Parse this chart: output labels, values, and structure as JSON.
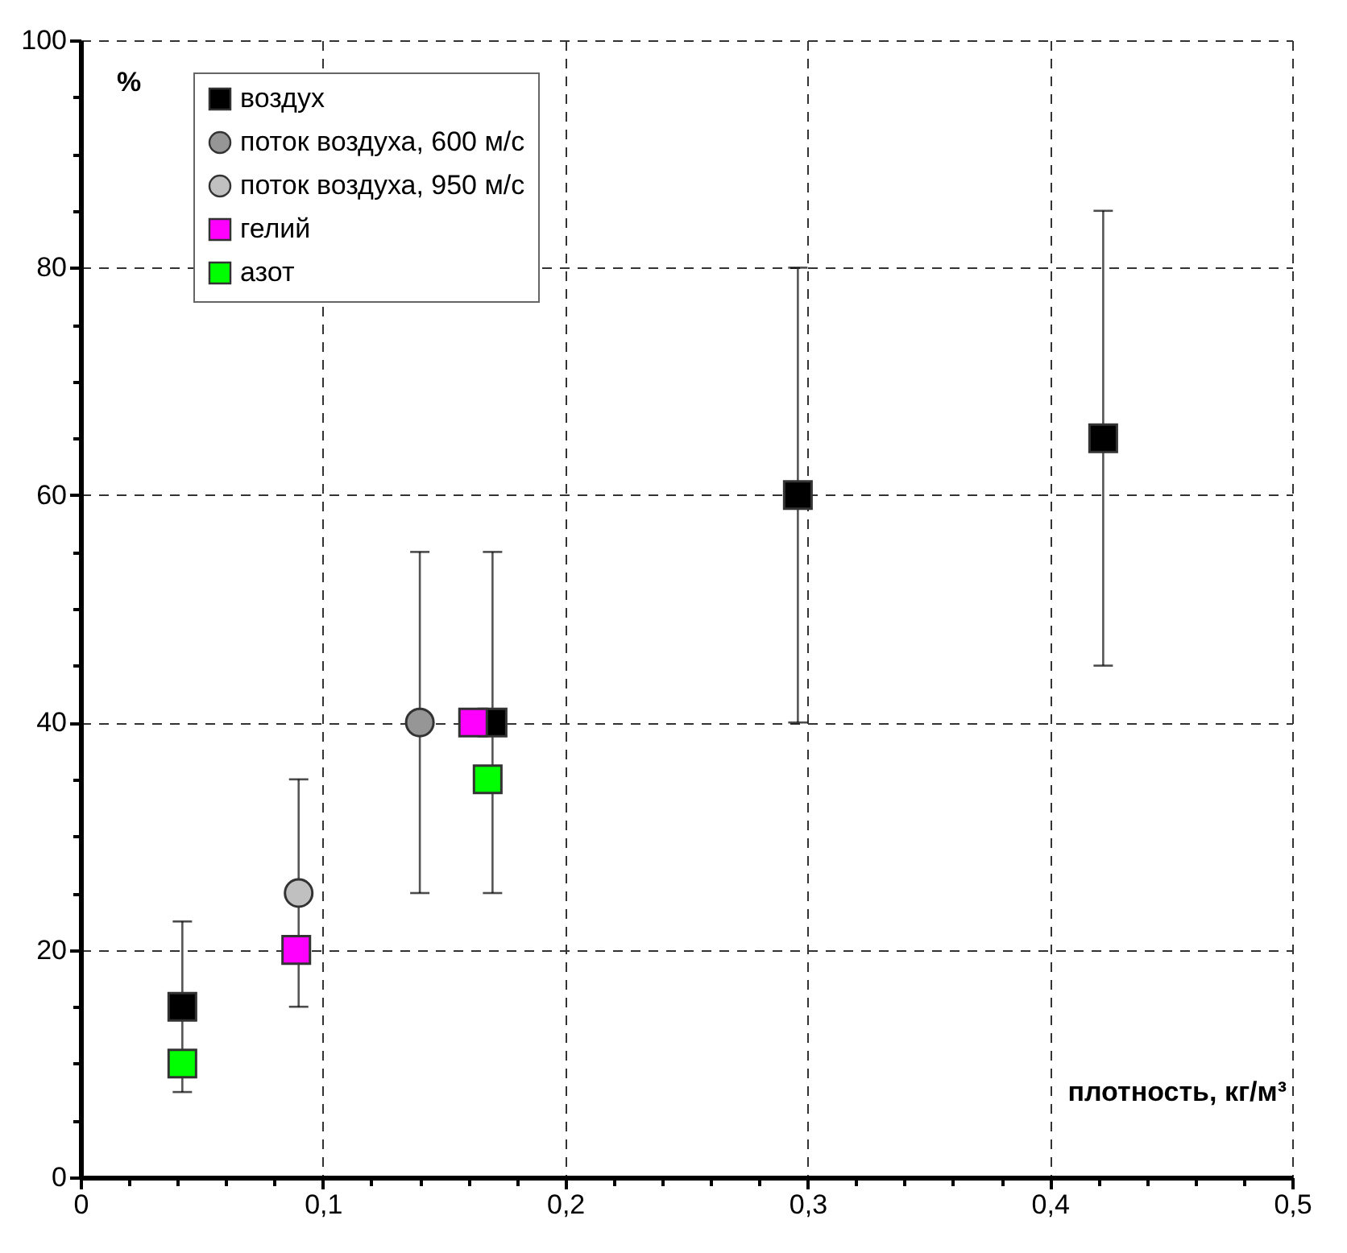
{
  "chart_data": {
    "type": "scatter",
    "xlabel": "плотность, кг/м³",
    "ylabel": "%",
    "xlim": [
      0,
      0.5
    ],
    "ylim": [
      0,
      100
    ],
    "xticks": [
      0,
      {
        "value": 0.02,
        "label": null
      },
      {
        "value": 0.04,
        "label": null
      },
      {
        "value": 0.06,
        "label": null
      },
      {
        "value": 0.08,
        "label": null
      },
      {
        "value": 0.1,
        "label": "0,1"
      },
      {
        "value": 0.12,
        "label": null
      },
      {
        "value": 0.14,
        "label": null
      },
      {
        "value": 0.16,
        "label": null
      },
      {
        "value": 0.18,
        "label": null
      },
      {
        "value": 0.2,
        "label": "0,2"
      },
      {
        "value": 0.22,
        "label": null
      },
      {
        "value": 0.24,
        "label": null
      },
      {
        "value": 0.26,
        "label": null
      },
      {
        "value": 0.28,
        "label": null
      },
      {
        "value": 0.3,
        "label": "0,3"
      },
      {
        "value": 0.32,
        "label": null
      },
      {
        "value": 0.34,
        "label": null
      },
      {
        "value": 0.36,
        "label": null
      },
      {
        "value": 0.38,
        "label": null
      },
      {
        "value": 0.4,
        "label": "0,4"
      },
      {
        "value": 0.42,
        "label": null
      },
      {
        "value": 0.44,
        "label": null
      },
      {
        "value": 0.46,
        "label": null
      },
      {
        "value": 0.48,
        "label": null
      },
      {
        "value": 0.5,
        "label": "0,5"
      }
    ],
    "yticks": [
      0,
      {
        "value": 5,
        "label": null
      },
      {
        "value": 10,
        "label": null
      },
      {
        "value": 15,
        "label": null
      },
      20,
      {
        "value": 25,
        "label": null
      },
      {
        "value": 30,
        "label": null
      },
      {
        "value": 35,
        "label": null
      },
      40,
      {
        "value": 45,
        "label": null
      },
      {
        "value": 50,
        "label": null
      },
      {
        "value": 55,
        "label": null
      },
      60,
      {
        "value": 65,
        "label": null
      },
      {
        "value": 70,
        "label": null
      },
      {
        "value": 75,
        "label": null
      },
      80,
      {
        "value": 85,
        "label": null
      },
      {
        "value": 90,
        "label": null
      },
      {
        "value": 95,
        "label": null
      },
      100
    ],
    "grid": true,
    "legend": "top left",
    "series": [
      {
        "name": "воздух",
        "color": "#000000",
        "marker": "square",
        "x": [
          0.042,
          0.17,
          0.296,
          0.422
        ],
        "values": [
          15,
          40,
          60,
          65
        ],
        "errors": [
          7.5,
          15,
          20,
          20
        ]
      },
      {
        "name": "поток воздуха, 600 м/с",
        "color": "#969696",
        "marker": "circle",
        "x": [
          0.14
        ],
        "values": [
          40
        ],
        "errors": [
          15
        ]
      },
      {
        "name": "поток воздуха, 950 м/с",
        "color": "#c0c0c0",
        "marker": "circle",
        "x": [
          0.09
        ],
        "values": [
          25
        ],
        "errors": [
          10
        ]
      },
      {
        "name": "гелий",
        "color": "#ff00ff",
        "marker": "square",
        "x": [
          0.089,
          0.162
        ],
        "values": [
          20,
          40
        ]
      },
      {
        "name": "азот",
        "color": "#00ff00",
        "marker": "square",
        "x": [
          0.042,
          0.168
        ],
        "values": [
          10,
          35
        ]
      }
    ]
  }
}
